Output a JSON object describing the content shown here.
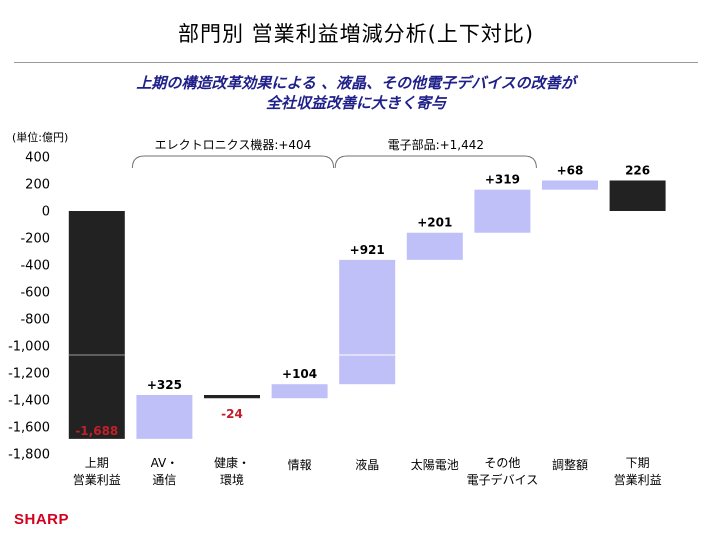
{
  "title": "部門別 営業利益増減分析(上下対比)",
  "subtitle_line1": "上期の構造改革効果による 、液晶、その他電子デバイスの改善が",
  "subtitle_line2": "全社収益改善に大きく寄与",
  "logo_text": "SHARP",
  "colors": {
    "total_bar": "#222222",
    "delta_bar": "#c0c0f8",
    "negative_label": "#c0202a",
    "divider": "#cfcfcf"
  },
  "chart_data": {
    "type": "bar",
    "subtype": "waterfall",
    "unit_label": "(単位:億円)",
    "ylim": [
      -1800,
      400
    ],
    "yticks": [
      "400",
      "200",
      "0",
      "-200",
      "-400",
      "-600",
      "-800",
      "-1,000",
      "-1,200",
      "-1,400",
      "-1,600",
      "-1,800"
    ],
    "ytick_values": [
      400,
      200,
      0,
      -200,
      -400,
      -600,
      -800,
      -1000,
      -1200,
      -1400,
      -1600,
      -1800
    ],
    "categories": [
      [
        "上期",
        "営業利益"
      ],
      [
        "AV・",
        "通信"
      ],
      [
        "健康・",
        "環境"
      ],
      [
        "情報"
      ],
      [
        "液晶"
      ],
      [
        "太陽電池"
      ],
      [
        "その他",
        "電子デバイス"
      ],
      [
        "調整額"
      ],
      [
        "下期",
        "営業利益"
      ]
    ],
    "bars": [
      {
        "kind": "total",
        "start": 0,
        "end": -1688,
        "label": "-1,688"
      },
      {
        "kind": "delta",
        "start": -1688,
        "end": -1363,
        "label": "+325"
      },
      {
        "kind": "delta",
        "start": -1363,
        "end": -1387,
        "label": "-24"
      },
      {
        "kind": "delta",
        "start": -1387,
        "end": -1283,
        "label": "+104"
      },
      {
        "kind": "delta",
        "start": -1283,
        "end": -362,
        "label": "+921"
      },
      {
        "kind": "delta",
        "start": -362,
        "end": -161,
        "label": "+201"
      },
      {
        "kind": "delta",
        "start": -161,
        "end": 158,
        "label": "+319"
      },
      {
        "kind": "delta",
        "start": 158,
        "end": 226,
        "label": "+68"
      },
      {
        "kind": "total",
        "start": 0,
        "end": 226,
        "label": "226"
      }
    ],
    "groups": [
      {
        "label": "エレクトロニクス機器:+404",
        "from": 1,
        "to": 3
      },
      {
        "label": "電子部品:+1,442",
        "from": 4,
        "to": 6
      }
    ]
  }
}
